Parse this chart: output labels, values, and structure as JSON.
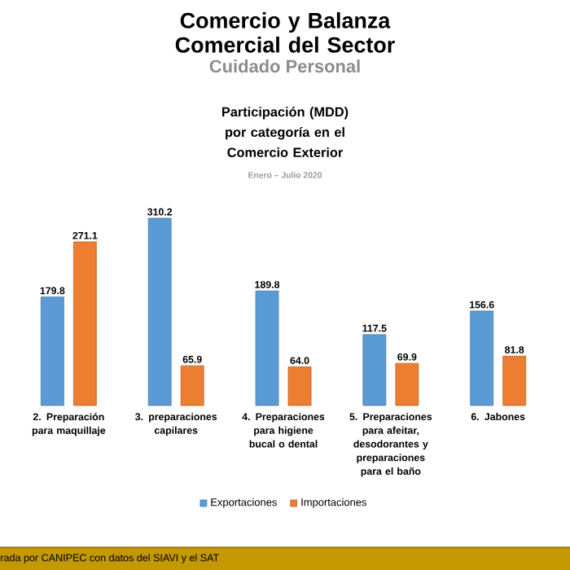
{
  "chart_data": {
    "type": "bar",
    "title": "Comercio y Balanza Comercial del Sector",
    "subtitle": "Cuidado Personal",
    "annotations": [
      "Participación (MDD) por categoría en el Comercio Exterior",
      "Enero – Julio 2020",
      "rada por CANIPEC con datos del SIAVI y el SAT"
    ],
    "categories": [
      "2. Preparación para maquillaje",
      "3. preparaciones capilares",
      "4. Preparaciones para higiene bucal o dental",
      "5. Preparaciones para afeitar, desodorantes y preparaciones para el baño",
      "6. Jabones"
    ],
    "series": [
      {
        "name": "Exportaciones",
        "color": "#5b9bd5",
        "values": [
          179.8,
          310.2,
          189.8,
          117.5,
          156.6
        ],
        "value_labels": [
          "179.8",
          "310.2",
          "189.8",
          "117.5",
          "156.6"
        ]
      },
      {
        "name": "Importaciones",
        "color": "#ed7d31",
        "values": [
          271.1,
          65.9,
          64.0,
          69.9,
          81.8
        ],
        "value_labels": [
          "271.1",
          "65.9",
          "64.0",
          "69.9",
          "81.8"
        ]
      }
    ],
    "legend": "bottom"
  }
}
